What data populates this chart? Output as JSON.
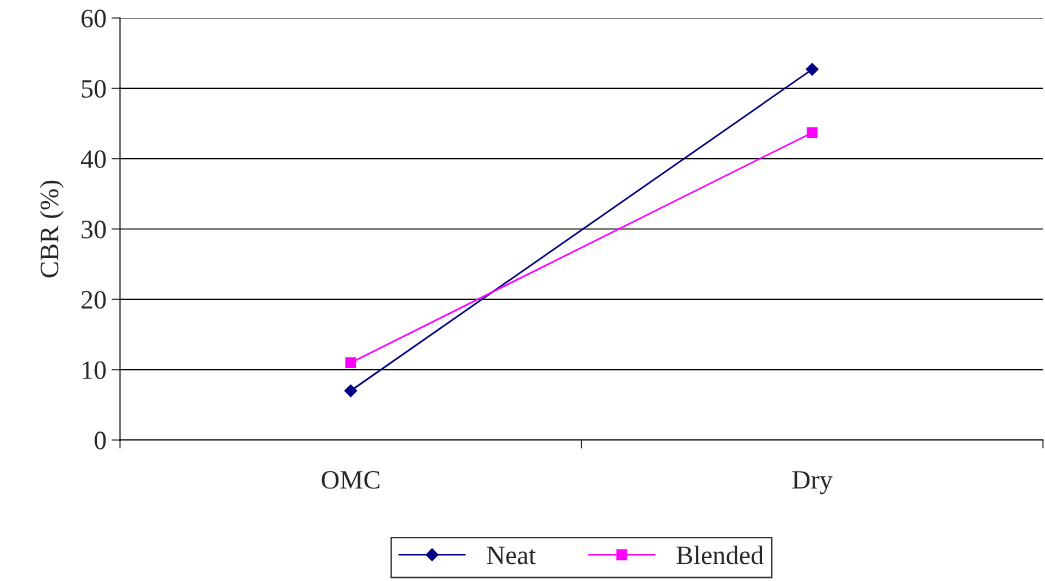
{
  "chart_data": {
    "type": "line",
    "ylabel": "CBR (%)",
    "categories": [
      "OMC",
      "Dry"
    ],
    "series": [
      {
        "name": "Neat",
        "color": "#000080",
        "marker": "diamond",
        "values": [
          7,
          52.7
        ]
      },
      {
        "name": "Blended",
        "color": "#ff00ff",
        "marker": "square",
        "values": [
          11,
          43.7
        ]
      }
    ],
    "ylim": [
      0,
      60
    ],
    "yticks": [
      0,
      10,
      20,
      30,
      40,
      50,
      60
    ],
    "grid": "y",
    "legend": "bottom"
  }
}
